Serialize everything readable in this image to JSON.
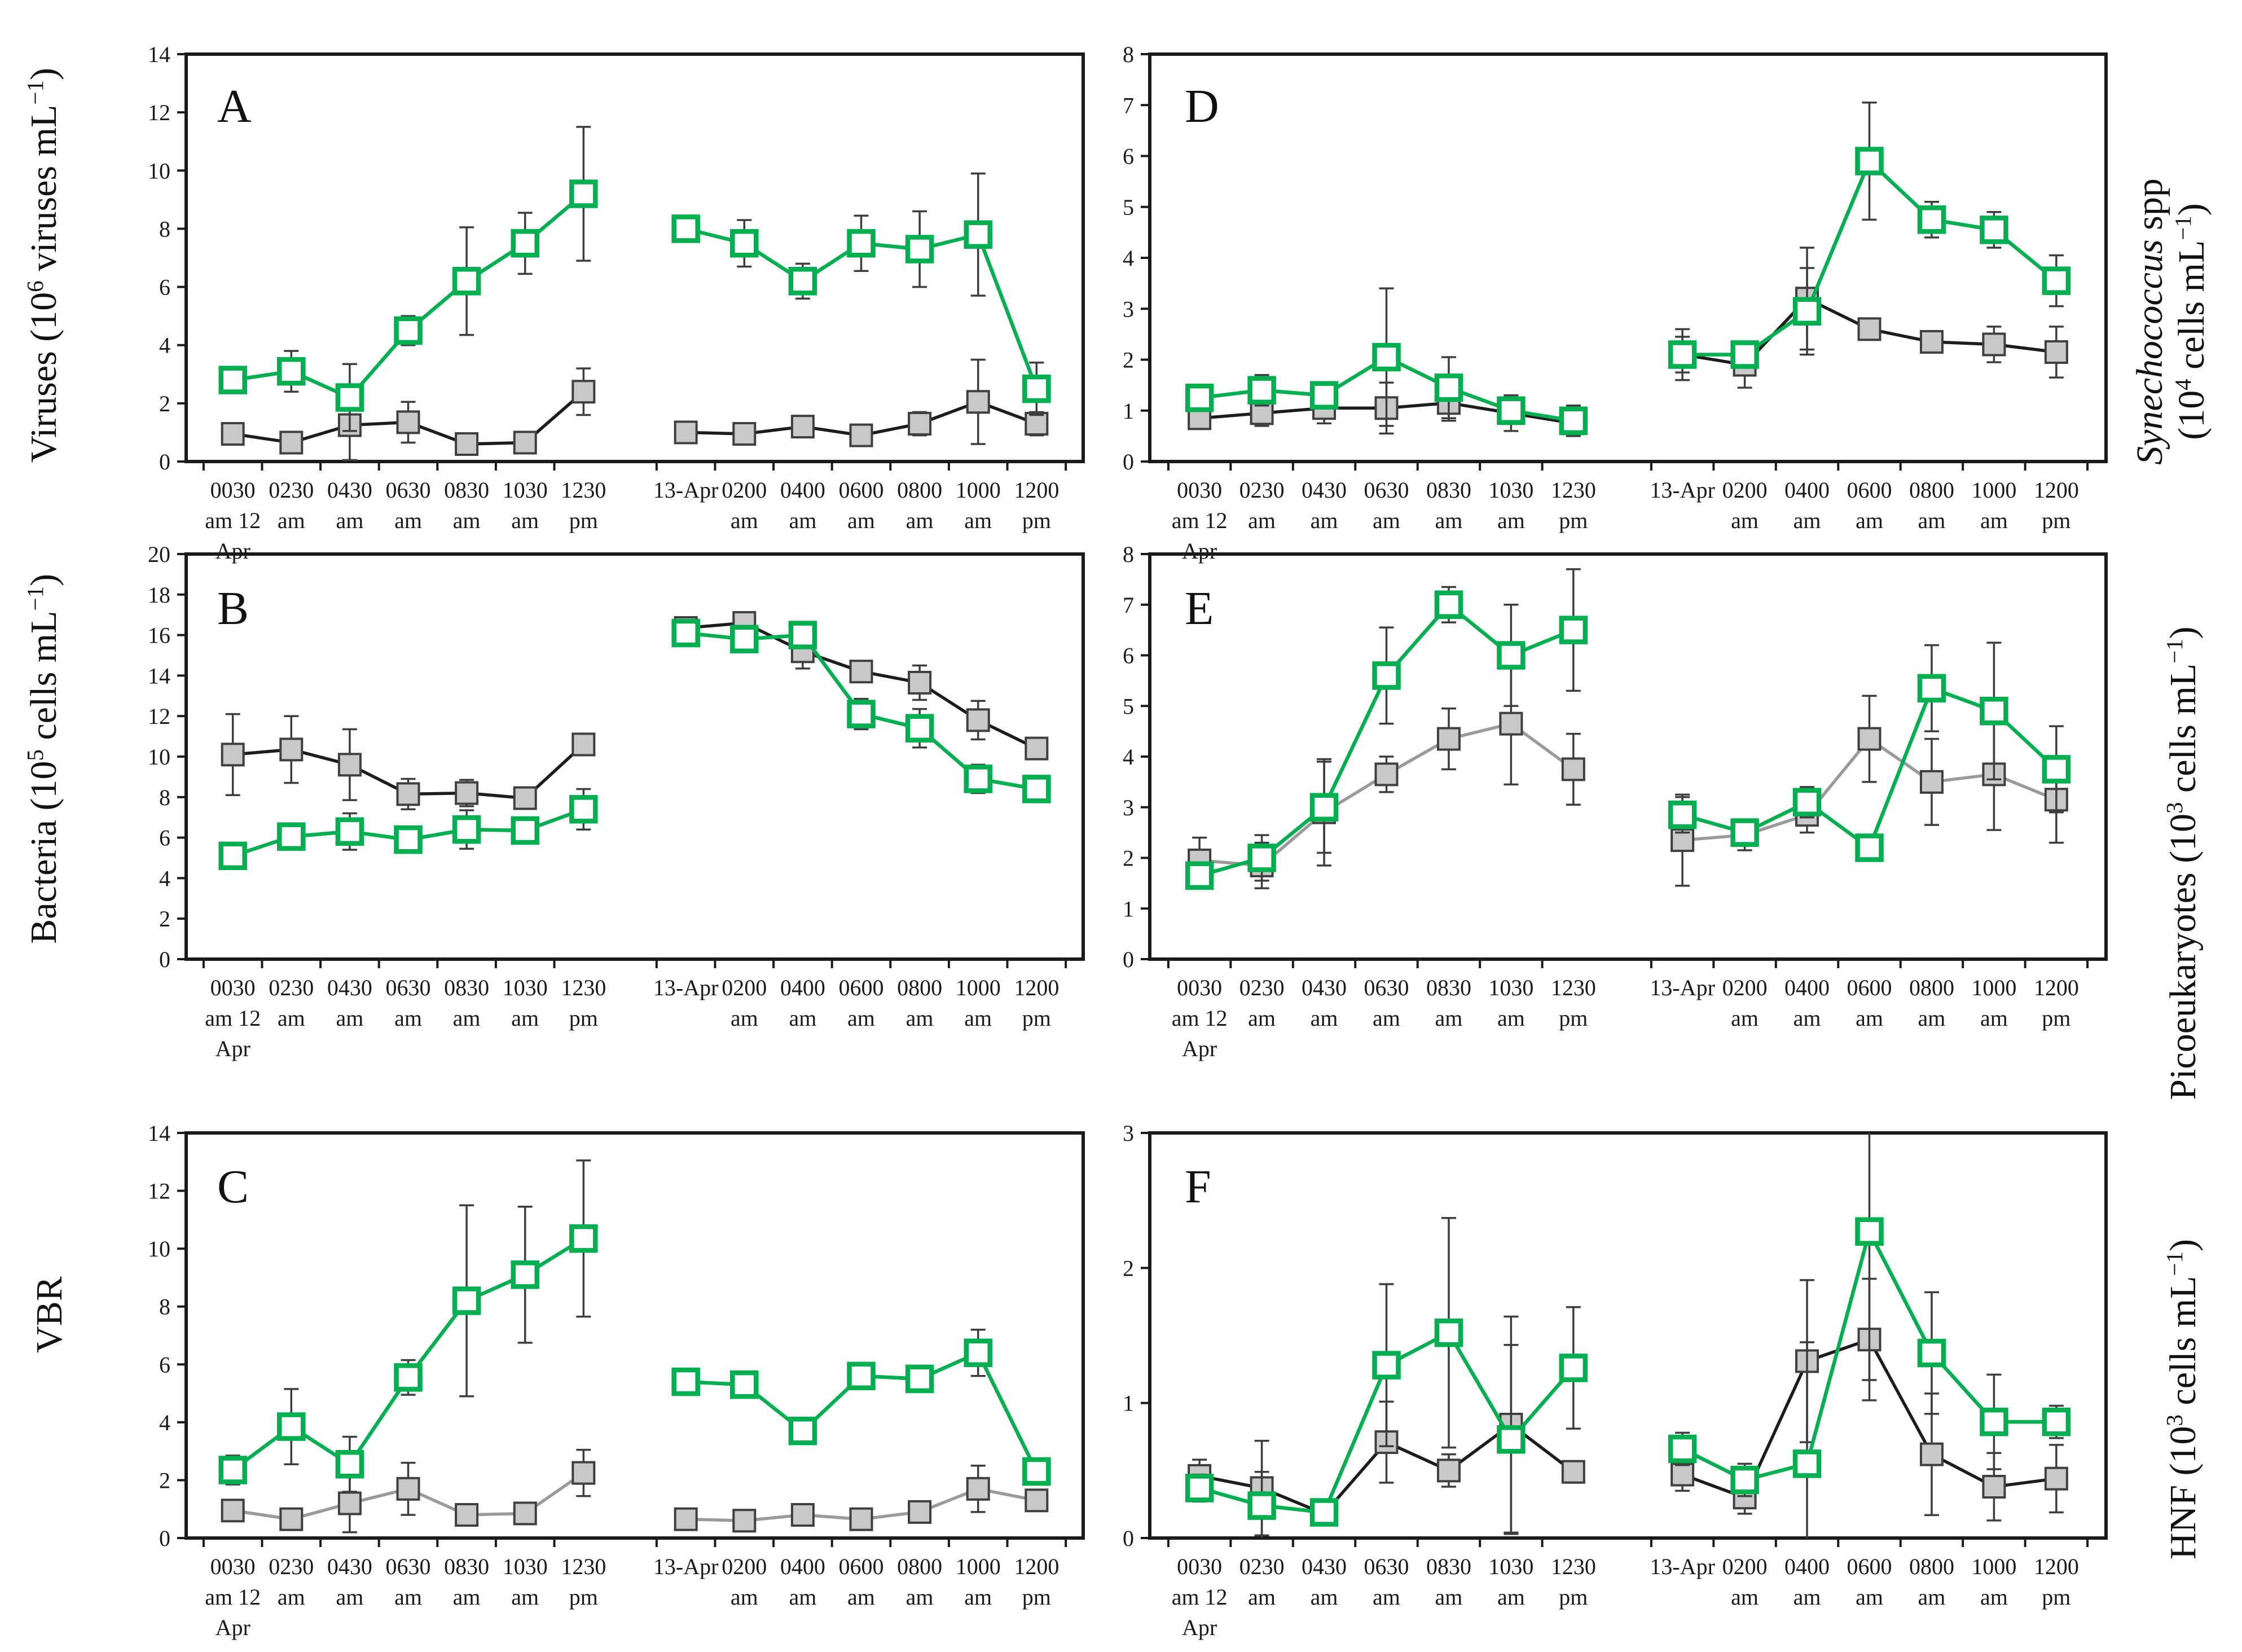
{
  "figure": {
    "background": "#ffffff",
    "axis_color": "#1a1a1a",
    "errorbar_color": "#3d3d3d",
    "tick_font_px": 40,
    "series_styles": {
      "green": {
        "marker": "open-square",
        "marker_color": "#00b050",
        "line_color": "#00b050"
      },
      "gray": {
        "marker": "filled-square",
        "fill": "#c8c8c8",
        "stroke": "#3f3f3f"
      }
    }
  },
  "x_axis": {
    "day1_labels": [
      [
        "0030",
        "am 12",
        "Apr"
      ],
      [
        "0230",
        "am"
      ],
      [
        "0430",
        "am"
      ],
      [
        "0630",
        "am"
      ],
      [
        "0830",
        "am"
      ],
      [
        "1030",
        "am"
      ],
      [
        "1230",
        "pm"
      ]
    ],
    "day2_labels": [
      [
        "13-Apr"
      ],
      [
        "0200",
        "am"
      ],
      [
        "0400",
        "am"
      ],
      [
        "0600",
        "am"
      ],
      [
        "0800",
        "am"
      ],
      [
        "1000",
        "am"
      ],
      [
        "1200",
        "pm"
      ]
    ]
  },
  "chart_data": [
    {
      "type": "line",
      "letter": "A",
      "title_side": "left",
      "y_title_lines": [
        [
          {
            "t": "Viruses (10"
          },
          {
            "t": "6",
            "sup": 1
          },
          {
            "t": " viruses mL"
          },
          {
            "t": "−1",
            "sup": 1
          },
          {
            "t": ")"
          }
        ]
      ],
      "ylim": [
        0,
        14
      ],
      "ytick_step": 2,
      "grid": false,
      "legend": "none",
      "series": [
        {
          "name": "gray-filled-square",
          "style": "gray",
          "line_color": "#1c1c1c",
          "values": [
            0.95,
            0.65,
            1.25,
            1.35,
            0.6,
            0.65,
            2.4,
            1.0,
            0.95,
            1.2,
            0.9,
            1.3,
            2.05,
            1.3
          ],
          "errors": [
            0.35,
            0.3,
            1.2,
            0.7,
            0.15,
            0.15,
            0.8,
            0.2,
            0.25,
            0.3,
            0.35,
            0.4,
            1.45,
            0.4
          ]
        },
        {
          "name": "green-open-square",
          "style": "green",
          "values": [
            2.8,
            3.1,
            2.2,
            4.5,
            6.2,
            7.5,
            9.2,
            8.0,
            7.5,
            6.2,
            7.5,
            7.3,
            7.8,
            2.5
          ],
          "errors": [
            0.3,
            0.7,
            1.15,
            0.5,
            1.85,
            1.05,
            2.3,
            0.4,
            0.8,
            0.6,
            0.95,
            1.3,
            2.1,
            0.9
          ]
        }
      ]
    },
    {
      "type": "line",
      "letter": "B",
      "title_side": "left",
      "y_title_lines": [
        [
          {
            "t": "Bacteria (10"
          },
          {
            "t": "5",
            "sup": 1
          },
          {
            "t": " cells mL"
          },
          {
            "t": "−1",
            "sup": 1
          },
          {
            "t": ")"
          }
        ]
      ],
      "ylim": [
        0,
        20
      ],
      "ytick_step": 2,
      "grid": false,
      "legend": "none",
      "series": [
        {
          "name": "gray-filled-square",
          "style": "gray",
          "line_color": "#1c1c1c",
          "values": [
            10.1,
            10.35,
            9.6,
            8.15,
            8.2,
            7.95,
            10.6,
            16.35,
            16.6,
            15.2,
            14.2,
            13.65,
            11.8,
            10.4
          ],
          "errors": [
            2.0,
            1.65,
            1.75,
            0.75,
            0.65,
            0.35,
            0.3,
            0.4,
            0.35,
            0.85,
            0.4,
            0.85,
            0.95,
            0.5
          ]
        },
        {
          "name": "green-open-square",
          "style": "green",
          "values": [
            5.1,
            6.05,
            6.3,
            5.9,
            6.4,
            6.35,
            7.4,
            16.1,
            15.8,
            16.0,
            12.1,
            11.4,
            8.9,
            8.4
          ],
          "errors": [
            0.3,
            0.5,
            0.9,
            0.4,
            0.95,
            0.5,
            1.0,
            0.35,
            0.5,
            0.45,
            0.75,
            0.95,
            0.7,
            0.5
          ]
        }
      ]
    },
    {
      "type": "line",
      "letter": "C",
      "title_side": "left",
      "y_title_lines": [
        [
          {
            "t": "VBR"
          }
        ]
      ],
      "ylim": [
        0,
        14
      ],
      "ytick_step": 2,
      "grid": false,
      "legend": "none",
      "series": [
        {
          "name": "gray-filled-square",
          "style": "gray",
          "line_color": "#9a9a9a",
          "values": [
            0.95,
            0.65,
            1.2,
            1.7,
            0.8,
            0.85,
            2.25,
            0.65,
            0.6,
            0.8,
            0.65,
            0.9,
            1.7,
            1.3
          ],
          "errors": [
            0.35,
            0.2,
            1.0,
            0.9,
            0.15,
            0.2,
            0.8,
            0.1,
            0.1,
            0.2,
            0.1,
            0.2,
            0.8,
            0.35
          ]
        },
        {
          "name": "green-open-square",
          "style": "green",
          "values": [
            2.35,
            3.85,
            2.55,
            5.55,
            8.2,
            9.1,
            10.35,
            5.4,
            5.3,
            3.7,
            5.6,
            5.5,
            6.4,
            2.3
          ],
          "errors": [
            0.5,
            1.3,
            0.95,
            0.6,
            3.3,
            2.35,
            2.7,
            0.45,
            0.4,
            0.35,
            0.45,
            0.35,
            0.8,
            0.35
          ]
        }
      ]
    },
    {
      "type": "line",
      "letter": "D",
      "title_side": "right",
      "y_title_lines": [
        [
          {
            "t": "Synechococcus",
            "italic": 1
          },
          {
            "t": " spp"
          }
        ],
        [
          {
            "t": "(10"
          },
          {
            "t": "4",
            "sup": 1
          },
          {
            "t": " cells mL"
          },
          {
            "t": "−1",
            "sup": 1
          },
          {
            "t": ")"
          }
        ]
      ],
      "ylim": [
        0,
        8
      ],
      "ytick_step": 1,
      "grid": false,
      "legend": "none",
      "series": [
        {
          "name": "gray-filled-square",
          "style": "gray",
          "line_color": "#1c1c1c",
          "values": [
            0.85,
            0.95,
            1.05,
            1.05,
            1.15,
            0.95,
            0.75,
            2.1,
            1.9,
            3.2,
            2.6,
            2.35,
            2.3,
            2.15
          ],
          "errors": [
            0.1,
            0.25,
            0.3,
            0.5,
            0.35,
            0.35,
            0.2,
            0.5,
            0.45,
            1.0,
            0.2,
            0.2,
            0.35,
            0.5
          ]
        },
        {
          "name": "green-open-square",
          "style": "green",
          "values": [
            1.25,
            1.4,
            1.3,
            2.05,
            1.45,
            1.0,
            0.8,
            2.1,
            2.1,
            2.95,
            5.9,
            4.75,
            4.55,
            3.55
          ],
          "errors": [
            0.15,
            0.3,
            0.25,
            1.35,
            0.6,
            0.25,
            0.3,
            0.35,
            0.2,
            0.85,
            1.15,
            0.35,
            0.35,
            0.5
          ]
        }
      ]
    },
    {
      "type": "line",
      "letter": "E",
      "title_side": "right",
      "y_title_lines": [
        [
          {
            "t": "Picoeukaryotes (10"
          },
          {
            "t": "3",
            "sup": 1
          },
          {
            "t": " cells mL"
          },
          {
            "t": "−1",
            "sup": 1
          },
          {
            "t": ")"
          }
        ]
      ],
      "ylim": [
        0,
        8
      ],
      "ytick_step": 1,
      "grid": false,
      "legend": "none",
      "series": [
        {
          "name": "gray-filled-square",
          "style": "gray",
          "line_color": "#9a9a9a",
          "values": [
            1.95,
            1.85,
            2.9,
            3.65,
            4.35,
            4.65,
            3.75,
            2.35,
            2.45,
            2.85,
            4.35,
            3.5,
            3.65,
            3.15
          ],
          "errors": [
            0.45,
            0.45,
            1.05,
            0.35,
            0.6,
            1.2,
            0.7,
            0.9,
            0.3,
            0.35,
            0.85,
            0.85,
            1.1,
            0.85
          ]
        },
        {
          "name": "green-open-square",
          "style": "green",
          "values": [
            1.65,
            2.0,
            3.0,
            5.6,
            7.0,
            6.0,
            6.5,
            2.85,
            2.5,
            3.1,
            2.2,
            5.35,
            4.9,
            3.75
          ],
          "errors": [
            0.25,
            0.45,
            0.9,
            0.95,
            0.35,
            1.0,
            1.2,
            0.35,
            0.25,
            0.3,
            0.1,
            0.85,
            1.35,
            0.85
          ]
        }
      ]
    },
    {
      "type": "line",
      "letter": "F",
      "title_side": "right",
      "y_title_lines": [
        [
          {
            "t": "HNF (10"
          },
          {
            "t": "3",
            "sup": 1
          },
          {
            "t": " cells mL"
          },
          {
            "t": "−1",
            "sup": 1
          },
          {
            "t": ")"
          }
        ]
      ],
      "ylim": [
        0,
        3
      ],
      "ytick_step": 1,
      "grid": false,
      "legend": "none",
      "series": [
        {
          "name": "gray-filled-square",
          "style": "gray",
          "line_color": "#1c1c1c",
          "values": [
            0.46,
            0.37,
            0.18,
            0.71,
            0.5,
            0.84,
            0.49,
            0.47,
            0.3,
            1.31,
            1.47,
            0.62,
            0.38,
            0.44
          ],
          "errors": [
            0.12,
            0.35,
            0.08,
            0.3,
            0.12,
            0.8,
            0.08,
            0.12,
            0.12,
            0.6,
            0.45,
            0.45,
            0.25,
            0.25
          ]
        },
        {
          "name": "green-open-square",
          "style": "green",
          "values": [
            0.37,
            0.24,
            0.19,
            1.28,
            1.52,
            0.73,
            1.26,
            0.66,
            0.43,
            0.55,
            2.27,
            1.37,
            0.86,
            0.86
          ],
          "errors": [
            0.1,
            0.25,
            0.07,
            0.6,
            0.85,
            0.7,
            0.45,
            0.12,
            0.12,
            0.9,
            1.1,
            0.45,
            0.35,
            0.12
          ]
        }
      ]
    }
  ]
}
